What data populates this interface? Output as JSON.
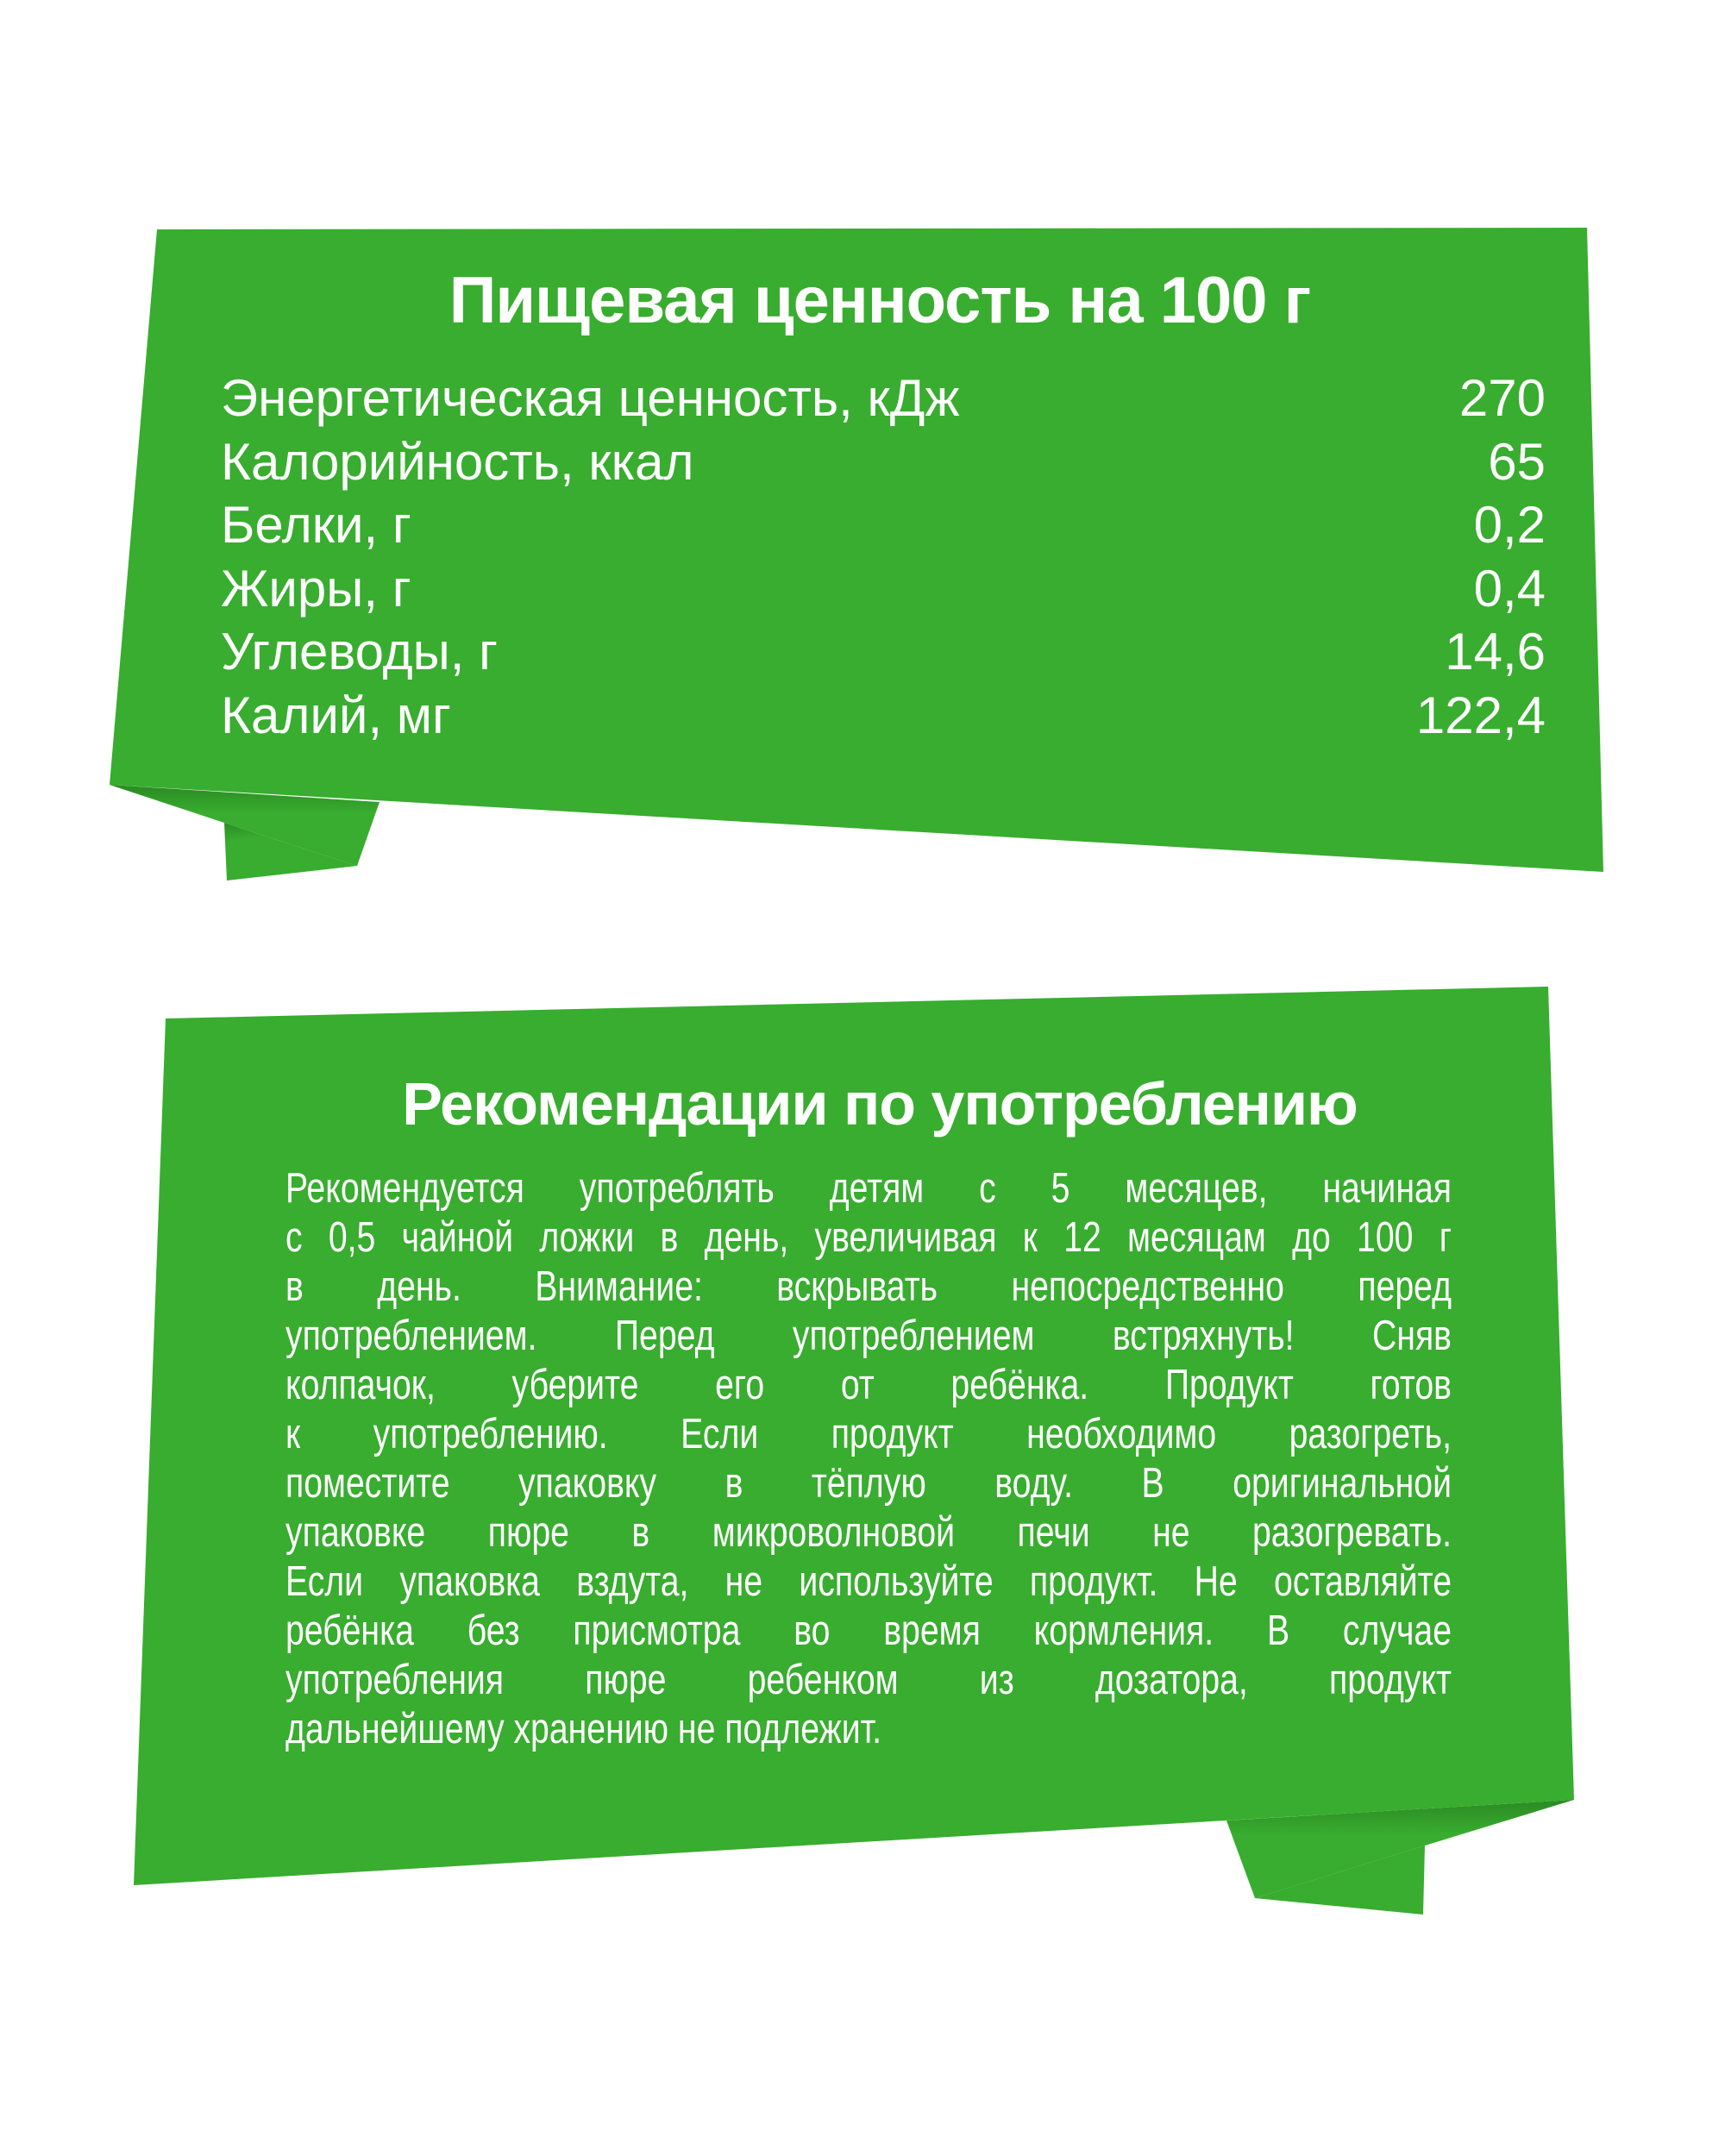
{
  "colors": {
    "ribbon": "#38ad2f",
    "fold_shadow": "#2a8a22",
    "text": "#ffffff"
  },
  "nutrition": {
    "title": "Пищевая ценность на 100 г",
    "rows": [
      {
        "label": "Энергетическая ценность, кДж",
        "value": "270"
      },
      {
        "label": "Калорийность, ккал",
        "value": "65"
      },
      {
        "label": "Белки, г",
        "value": "0,2"
      },
      {
        "label": "Жиры, г",
        "value": "0,4"
      },
      {
        "label": "Углеводы, г",
        "value": "14,6"
      },
      {
        "label": "Калий, мг",
        "value": "122,4"
      }
    ]
  },
  "recommendations": {
    "title": "Рекомендации по употреблению",
    "lines": [
      "Рекомендуется употреблять детям с 5 месяцев, начиная",
      "с 0,5 чайной ложки в день, увеличивая к 12 месяцам до 100 г",
      "в день. Внимание: вскрывать непосредственно перед",
      "употреблением. Перед употреблением встряхнуть! Сняв",
      "колпачок, уберите его от ребёнка. Продукт готов",
      "к употреблению. Если продукт необходимо разогреть,",
      "поместите упаковку в тёплую воду. В оригинальной",
      "упаковке пюре в микроволновой печи не разогревать.",
      "Если упаковка вздута, не используйте продукт. Не оставляйте",
      "ребёнка без присмотра во время кормления. В случае",
      "употребления пюре ребенком из дозатора, продукт",
      "дальнейшему хранению не подлежит."
    ]
  }
}
